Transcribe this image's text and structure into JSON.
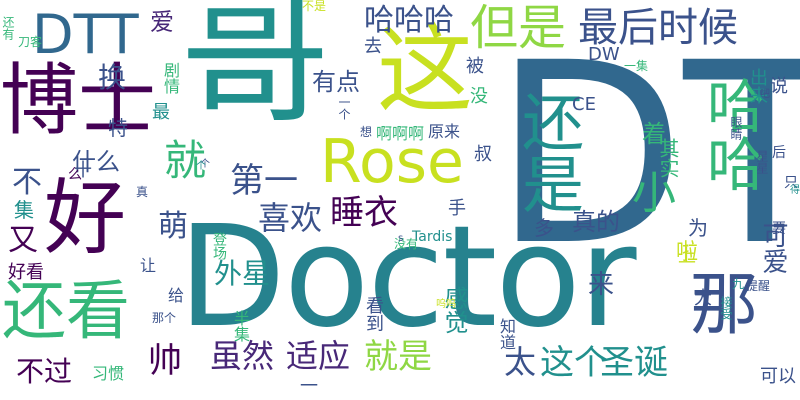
{
  "cloud": {
    "palette": {
      "purple": "#440154",
      "indigo": "#3b528b",
      "blue": "#31688e",
      "teal": "#21908d",
      "green": "#35b779",
      "lime": "#8fd744",
      "yellow": "#c8e020",
      "dark_teal": "#26828e"
    },
    "words": [
      {
        "key": "doctor",
        "text": "Doctor",
        "color": "#26828e"
      },
      {
        "key": "dt",
        "text": "DT",
        "color": "#31688e"
      },
      {
        "key": "ge",
        "text": "哥",
        "color": "#21908d"
      },
      {
        "key": "boshi",
        "text": "博士",
        "color": "#440154"
      },
      {
        "key": "hao",
        "text": "好",
        "color": "#440154"
      },
      {
        "key": "zhe",
        "text": "这",
        "color": "#c8e020"
      },
      {
        "key": "rose",
        "text": "Rose",
        "color": "#c8e020"
      },
      {
        "key": "haishi",
        "text": "还是",
        "color": "#21908d"
      },
      {
        "key": "haha",
        "text": "哈哈",
        "color": "#35b779"
      },
      {
        "key": "na",
        "text": "那",
        "color": "#3b528b"
      },
      {
        "key": "haikan",
        "text": "还看",
        "color": "#35b779"
      },
      {
        "key": "dtt",
        "text": "DTT",
        "color": "#31688e"
      },
      {
        "key": "danshi",
        "text": "但是",
        "color": "#8fd744"
      },
      {
        "key": "zuihoushihou",
        "text": "最后时候",
        "color": "#3b528b"
      },
      {
        "key": "hahaha",
        "text": "哈哈哈",
        "color": "#3b528b"
      },
      {
        "key": "ai",
        "text": "爱",
        "color": "#482878"
      },
      {
        "key": "jiu",
        "text": "就",
        "color": "#35b779"
      },
      {
        "key": "xiao",
        "text": "小",
        "color": "#35b779"
      },
      {
        "key": "diyi",
        "text": "第一",
        "color": "#3b528b"
      },
      {
        "key": "xihuan",
        "text": "喜欢",
        "color": "#3b528b"
      },
      {
        "key": "shuiyi",
        "text": "睡衣",
        "color": "#440154"
      },
      {
        "key": "suiran",
        "text": "虽然",
        "color": "#482878"
      },
      {
        "key": "shiying",
        "text": "适应",
        "color": "#482878"
      },
      {
        "key": "jiushi",
        "text": "就是",
        "color": "#8fd744"
      },
      {
        "key": "tai",
        "text": "太",
        "color": "#3b528b"
      },
      {
        "key": "zhege",
        "text": "这个",
        "color": "#21908d"
      },
      {
        "key": "shengdan",
        "text": "圣诞",
        "color": "#21908d"
      },
      {
        "key": "shuai",
        "text": "帅",
        "color": "#440154"
      },
      {
        "key": "meng",
        "text": "萌",
        "color": "#3b528b"
      },
      {
        "key": "you",
        "text": "又",
        "color": "#440154"
      },
      {
        "key": "bu",
        "text": "不",
        "color": "#3b528b"
      },
      {
        "key": "shenme",
        "text": "什么",
        "color": "#3b528b"
      },
      {
        "key": "youdian",
        "text": "有点",
        "color": "#3b528b"
      },
      {
        "key": "huan",
        "text": "换",
        "color": "#3b528b"
      },
      {
        "key": "zhe2",
        "text": "着",
        "color": "#35b779"
      },
      {
        "key": "keai",
        "text": "可爱",
        "color": "#3b528b"
      },
      {
        "key": "waixing",
        "text": "外星",
        "color": "#21908d"
      },
      {
        "key": "zhende",
        "text": "真的",
        "color": "#3b528b"
      },
      {
        "key": "ganjue",
        "text": "感觉",
        "color": "#21908d"
      },
      {
        "key": "lai",
        "text": "来",
        "color": "#3b528b"
      },
      {
        "key": "buguo",
        "text": "不过",
        "color": "#440154"
      },
      {
        "key": "qishi",
        "text": "其实",
        "color": "#35b779"
      },
      {
        "key": "chulai",
        "text": "出来",
        "color": "#21908d"
      },
      {
        "key": "shuo",
        "text": "说",
        "color": "#3b528b"
      },
      {
        "key": "ji",
        "text": "集",
        "color": "#21908d"
      },
      {
        "key": "yi",
        "text": "一",
        "color": "#3b528b"
      },
      {
        "key": "duo",
        "text": "多",
        "color": "#3b528b"
      },
      {
        "key": "shou",
        "text": "手",
        "color": "#3b528b"
      },
      {
        "key": "kandao",
        "text": "看到",
        "color": "#3b528b"
      },
      {
        "key": "zhidao",
        "text": "知道",
        "color": "#3b528b"
      },
      {
        "key": "banji",
        "text": "半集",
        "color": "#35b779"
      },
      {
        "key": "mei",
        "text": "没",
        "color": "#35b779"
      },
      {
        "key": "bei",
        "text": "被",
        "color": "#3b528b"
      },
      {
        "key": "qu",
        "text": "去",
        "color": "#3b528b"
      },
      {
        "key": "juqing",
        "text": "剧情",
        "color": "#35b779"
      },
      {
        "key": "zui",
        "text": "最",
        "color": "#21908d"
      },
      {
        "key": "te",
        "text": "特",
        "color": "#3b528b"
      },
      {
        "key": "shi",
        "text": "十",
        "color": "#3b528b"
      },
      {
        "key": "dw",
        "text": "DW",
        "color": "#3b528b"
      },
      {
        "key": "ce",
        "text": "CE",
        "color": "#3b528b"
      },
      {
        "key": "ahaa",
        "text": "啊啊啊",
        "color": "#35b779"
      },
      {
        "key": "yuanlai",
        "text": "原来",
        "color": "#3b528b"
      },
      {
        "key": "shu",
        "text": "叔",
        "color": "#3b528b"
      },
      {
        "key": "la",
        "text": "啦",
        "color": "#c8e020"
      },
      {
        "key": "wei",
        "text": "为",
        "color": "#3b528b"
      },
      {
        "key": "shang",
        "text": "上",
        "color": "#c8e020"
      },
      {
        "key": "da",
        "text": "大",
        "color": "#3b528b"
      },
      {
        "key": "keyi",
        "text": "可以",
        "color": "#3b528b"
      },
      {
        "key": "tardis",
        "text": "Tardis",
        "color": "#21908d"
      },
      {
        "key": "xiguan",
        "text": "习惯",
        "color": "#35b779"
      },
      {
        "key": "haokan",
        "text": "好看",
        "color": "#440154"
      },
      {
        "key": "rang",
        "text": "让",
        "color": "#3b528b"
      },
      {
        "key": "gei",
        "text": "给",
        "color": "#3b528b"
      },
      {
        "key": "dengchang",
        "text": "登场",
        "color": "#35b779"
      },
      {
        "key": "meiyou",
        "text": "没有",
        "color": "#35b779"
      },
      {
        "key": "s",
        "text": "s",
        "color": "#3b528b"
      },
      {
        "key": "yiji",
        "text": "一集",
        "color": "#35b779"
      },
      {
        "key": "ba",
        "text": "吧",
        "color": "#3b528b"
      },
      {
        "key": "yanjing",
        "text": "眼睛",
        "color": "#3b528b"
      },
      {
        "key": "xingxing",
        "text": "星星",
        "color": "#3b528b"
      },
      {
        "key": "hou",
        "text": "后",
        "color": "#3b528b"
      },
      {
        "key": "zhi",
        "text": "只",
        "color": "#3b528b"
      },
      {
        "key": "de",
        "text": "得",
        "color": "#21908d"
      },
      {
        "key": "yao",
        "text": "要",
        "color": "#3b528b"
      },
      {
        "key": "tixing",
        "text": "提醒",
        "color": "#3b528b"
      },
      {
        "key": "jiu2",
        "text": "九",
        "color": "#21908d"
      },
      {
        "key": "jieshou",
        "text": "接受",
        "color": "#21908d"
      },
      {
        "key": "wuwu",
        "text": "呜呜",
        "color": "#c8e020"
      },
      {
        "key": "nage",
        "text": "那个",
        "color": "#3b528b"
      },
      {
        "key": "haiyou",
        "text": "还有",
        "color": "#35b779"
      },
      {
        "key": "daoke",
        "text": "刀客",
        "color": "#35b779"
      },
      {
        "key": "me",
        "text": "么",
        "color": "#440154"
      },
      {
        "key": "zhen",
        "text": "真",
        "color": "#3b528b"
      },
      {
        "key": "bushi",
        "text": "不是",
        "color": "#c8e020"
      },
      {
        "key": "ge2",
        "text": "个",
        "color": "#3b528b"
      },
      {
        "key": "xiang",
        "text": "想",
        "color": "#3b528b"
      },
      {
        "key": "yige",
        "text": "一个",
        "color": "#3b528b"
      },
      {
        "key": "ge3",
        "text": "个",
        "color": "#21908d"
      }
    ]
  }
}
